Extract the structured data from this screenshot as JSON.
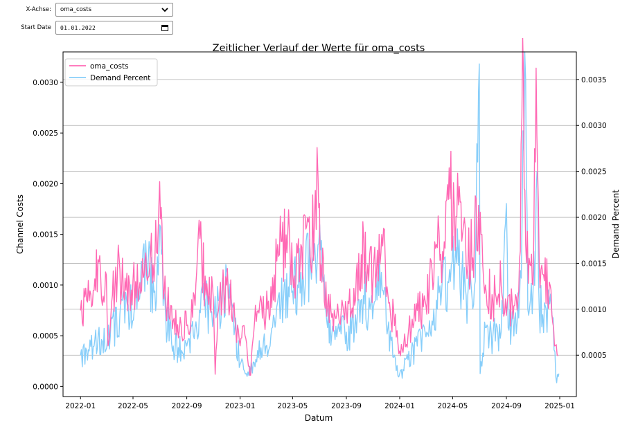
{
  "controls": {
    "x_axis": {
      "label": "X-Achse:",
      "value": "oma_costs",
      "icon": "chevron-down-icon"
    },
    "start_date": {
      "label": "Start Date",
      "value": "01.01.2022",
      "icon": "calendar-icon"
    }
  },
  "chart_data": {
    "type": "line",
    "title": "Zeitlicher Verlauf der Werte für oma_costs",
    "xlabel": "Datum",
    "ylabel": "Channel Costs",
    "ylabel_right": "Demand Percent",
    "x_ticks": [
      "2022-01",
      "2022-05",
      "2022-09",
      "2023-01",
      "2023-05",
      "2023-09",
      "2024-01",
      "2024-05",
      "2024-09",
      "2025-01"
    ],
    "y_ticks_left": [
      "0.0000",
      "0.0005",
      "0.0010",
      "0.0015",
      "0.0020",
      "0.0025",
      "0.0030"
    ],
    "y_ticks_right": [
      "0.0005",
      "0.0010",
      "0.0015",
      "0.0020",
      "0.0025",
      "0.0030",
      "0.0035"
    ],
    "xlim": [
      "2021-11-22",
      "2025-02-08"
    ],
    "ylim_left": [
      -0.0001,
      0.0033
    ],
    "ylim_right": [
      5e-05,
      0.0038
    ],
    "grid": "right-axis horizontal lines",
    "legend_position": "top-left",
    "series": [
      {
        "name": "oma_costs",
        "axis": "left",
        "color": "#ff69b4",
        "points": [
          [
            "2022-01-01",
            0.00075
          ],
          [
            "2022-01-15",
            0.00085
          ],
          [
            "2022-02-01",
            0.00095
          ],
          [
            "2022-02-10",
            0.00125
          ],
          [
            "2022-02-20",
            0.0008
          ],
          [
            "2022-03-01",
            0.0011
          ],
          [
            "2022-03-05",
            0.0004
          ],
          [
            "2022-03-15",
            0.0009
          ],
          [
            "2022-04-01",
            0.00115
          ],
          [
            "2022-04-15",
            0.00095
          ],
          [
            "2022-05-01",
            0.00105
          ],
          [
            "2022-05-15",
            0.00095
          ],
          [
            "2022-06-01",
            0.0011
          ],
          [
            "2022-06-10",
            0.0013
          ],
          [
            "2022-06-20",
            0.0012
          ],
          [
            "2022-06-28",
            0.0016
          ],
          [
            "2022-07-01",
            0.00202
          ],
          [
            "2022-07-08",
            0.0012
          ],
          [
            "2022-07-15",
            0.00085
          ],
          [
            "2022-08-01",
            0.00065
          ],
          [
            "2022-08-15",
            0.00055
          ],
          [
            "2022-09-01",
            0.0006
          ],
          [
            "2022-09-20",
            0.0008
          ],
          [
            "2022-10-01",
            0.00146
          ],
          [
            "2022-10-05",
            0.0013
          ],
          [
            "2022-10-15",
            0.0009
          ],
          [
            "2022-11-01",
            0.00085
          ],
          [
            "2022-11-05",
            0.00012
          ],
          [
            "2022-11-15",
            0.0009
          ],
          [
            "2022-12-01",
            0.001
          ],
          [
            "2022-12-20",
            0.00065
          ],
          [
            "2023-01-01",
            0.0004
          ],
          [
            "2023-01-10",
            0.0006
          ],
          [
            "2023-01-20",
            0.0002
          ],
          [
            "2023-01-25",
            0.00011
          ],
          [
            "2023-02-05",
            0.0008
          ],
          [
            "2023-03-01",
            0.0007
          ],
          [
            "2023-03-20",
            0.0011
          ],
          [
            "2023-04-01",
            0.0013
          ],
          [
            "2023-04-20",
            0.0015
          ],
          [
            "2023-05-01",
            0.0011
          ],
          [
            "2023-05-20",
            0.0014
          ],
          [
            "2023-06-10",
            0.0013
          ],
          [
            "2023-06-20",
            0.00165
          ],
          [
            "2023-06-28",
            0.00208
          ],
          [
            "2023-07-05",
            0.0012
          ],
          [
            "2023-07-20",
            0.0008
          ],
          [
            "2023-08-10",
            0.0007
          ],
          [
            "2023-09-01",
            0.00075
          ],
          [
            "2023-09-20",
            0.0008
          ],
          [
            "2023-10-05",
            0.0013
          ],
          [
            "2023-10-20",
            0.0012
          ],
          [
            "2023-11-01",
            0.00105
          ],
          [
            "2023-11-15",
            0.0015
          ],
          [
            "2023-11-25",
            0.00156
          ],
          [
            "2023-12-05",
            0.0009
          ],
          [
            "2023-12-20",
            0.0006
          ],
          [
            "2024-01-01",
            0.00035
          ],
          [
            "2024-01-20",
            0.0005
          ],
          [
            "2024-02-10",
            0.00075
          ],
          [
            "2024-03-01",
            0.0008
          ],
          [
            "2024-03-25",
            0.0014
          ],
          [
            "2024-04-10",
            0.00125
          ],
          [
            "2024-04-25",
            0.00185
          ],
          [
            "2024-05-05",
            0.00175
          ],
          [
            "2024-05-20",
            0.00182
          ],
          [
            "2024-06-05",
            0.0012
          ],
          [
            "2024-06-20",
            0.0015
          ],
          [
            "2024-07-05",
            0.0015
          ],
          [
            "2024-07-15",
            0.001
          ],
          [
            "2024-08-01",
            0.00085
          ],
          [
            "2024-08-20",
            0.001
          ],
          [
            "2024-09-01",
            0.0007
          ],
          [
            "2024-09-20",
            0.0008
          ],
          [
            "2024-10-01",
            0.00125
          ],
          [
            "2024-10-10",
            0.00309
          ],
          [
            "2024-10-15",
            0.0014
          ],
          [
            "2024-10-25",
            0.0012
          ],
          [
            "2024-11-01",
            0.001
          ],
          [
            "2024-11-08",
            0.00314
          ],
          [
            "2024-11-15",
            0.0012
          ],
          [
            "2024-11-25",
            0.0011
          ],
          [
            "2024-12-10",
            0.001
          ],
          [
            "2024-12-20",
            0.0004
          ],
          [
            "2024-12-28",
            0.0003
          ]
        ]
      },
      {
        "name": "Demand Percent",
        "axis": "right",
        "color": "#87cefa",
        "points": [
          [
            "2022-01-01",
            0.0005
          ],
          [
            "2022-01-15",
            0.00055
          ],
          [
            "2022-02-01",
            0.0006
          ],
          [
            "2022-02-20",
            0.00065
          ],
          [
            "2022-03-10",
            0.0007
          ],
          [
            "2022-04-01",
            0.00095
          ],
          [
            "2022-04-20",
            0.00105
          ],
          [
            "2022-05-10",
            0.001
          ],
          [
            "2022-06-01",
            0.0015
          ],
          [
            "2022-06-20",
            0.0012
          ],
          [
            "2022-07-05",
            0.0016
          ],
          [
            "2022-07-15",
            0.0009
          ],
          [
            "2022-08-01",
            0.0006
          ],
          [
            "2022-08-20",
            0.00055
          ],
          [
            "2022-09-01",
            0.0006
          ],
          [
            "2022-09-20",
            0.0008
          ],
          [
            "2022-10-10",
            0.0011
          ],
          [
            "2022-11-01",
            0.0009
          ],
          [
            "2022-11-20",
            0.0011
          ],
          [
            "2022-12-05",
            0.00125
          ],
          [
            "2022-12-20",
            0.0008
          ],
          [
            "2023-01-01",
            0.0004
          ],
          [
            "2023-01-15",
            0.0003
          ],
          [
            "2023-01-25",
            0.0003
          ],
          [
            "2023-02-10",
            0.00055
          ],
          [
            "2023-03-01",
            0.0006
          ],
          [
            "2023-03-20",
            0.0009
          ],
          [
            "2023-04-10",
            0.0011
          ],
          [
            "2023-05-01",
            0.0012
          ],
          [
            "2023-05-20",
            0.0014
          ],
          [
            "2023-06-15",
            0.0015
          ],
          [
            "2023-06-28",
            0.0017
          ],
          [
            "2023-07-10",
            0.0013
          ],
          [
            "2023-07-20",
            0.0008
          ],
          [
            "2023-08-10",
            0.0007
          ],
          [
            "2023-09-01",
            0.00075
          ],
          [
            "2023-09-20",
            0.0008
          ],
          [
            "2023-10-10",
            0.00115
          ],
          [
            "2023-10-25",
            0.001
          ],
          [
            "2023-11-10",
            0.0011
          ],
          [
            "2023-11-20",
            0.0014
          ],
          [
            "2023-12-05",
            0.0008
          ],
          [
            "2023-12-20",
            0.0005
          ],
          [
            "2024-01-01",
            0.0003
          ],
          [
            "2024-01-20",
            0.00045
          ],
          [
            "2024-02-10",
            0.0006
          ],
          [
            "2024-03-01",
            0.0007
          ],
          [
            "2024-03-25",
            0.0011
          ],
          [
            "2024-04-20",
            0.0013
          ],
          [
            "2024-05-10",
            0.0015
          ],
          [
            "2024-06-01",
            0.00115
          ],
          [
            "2024-06-20",
            0.00125
          ],
          [
            "2024-07-01",
            0.00367
          ],
          [
            "2024-07-03",
            0.0003
          ],
          [
            "2024-07-15",
            0.0008
          ],
          [
            "2024-08-01",
            0.0007
          ],
          [
            "2024-08-20",
            0.00075
          ],
          [
            "2024-09-01",
            0.00215
          ],
          [
            "2024-09-05",
            0.0008
          ],
          [
            "2024-09-20",
            0.0009
          ],
          [
            "2024-10-01",
            0.0011
          ],
          [
            "2024-10-15",
            0.0035
          ],
          [
            "2024-10-20",
            0.001
          ],
          [
            "2024-11-01",
            0.0012
          ],
          [
            "2024-11-10",
            0.0025
          ],
          [
            "2024-11-15",
            0.001
          ],
          [
            "2024-12-01",
            0.001
          ],
          [
            "2024-12-15",
            0.0009
          ],
          [
            "2024-12-25",
            0.0002
          ],
          [
            "2024-12-30",
            0.0003
          ]
        ]
      }
    ]
  }
}
